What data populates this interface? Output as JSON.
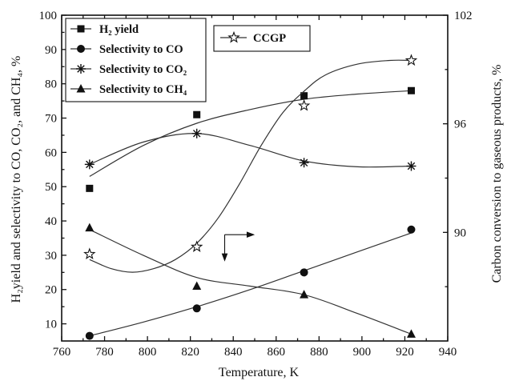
{
  "chart_data": {
    "type": "scatter",
    "xlabel": "Temperature, K",
    "ylabel_left": "H₂yield and selectivity to CO, CO₂, and CH₄, %",
    "ylabel_right": "Carbon conversion to gaseous products, %",
    "xlim": [
      760,
      940
    ],
    "ylim_left": [
      5,
      100
    ],
    "ylim_right": [
      84,
      102
    ],
    "x_ticks": [
      "760",
      "780",
      "800",
      "820",
      "840",
      "860",
      "880",
      "900",
      "920",
      "940"
    ],
    "y_ticks_left": [
      "10",
      "20",
      "30",
      "40",
      "50",
      "60",
      "70",
      "80",
      "90",
      "100"
    ],
    "y_ticks_right": [
      "90",
      "96",
      "102"
    ],
    "legend_left": {
      "position": "top-left",
      "entries": [
        {
          "name": "H₂ yield",
          "series": "h2_yield"
        },
        {
          "name": "Selectivity to CO",
          "series": "sel_co"
        },
        {
          "name": "Selectivity to CO₂",
          "series": "sel_co2"
        },
        {
          "name": "Selectivity to CH₄",
          "series": "sel_ch4"
        }
      ]
    },
    "legend_right": {
      "position": "top-center",
      "entries": [
        {
          "name": "CCGP",
          "series": "ccgp"
        }
      ]
    },
    "series": [
      {
        "id": "h2_yield",
        "marker": "square",
        "axis": "left",
        "x": [
          773,
          823,
          873,
          923
        ],
        "values": [
          49.5,
          71,
          76.5,
          78
        ],
        "curve_x": [
          773,
          798,
          823,
          848,
          873,
          898,
          923
        ],
        "curve_y": [
          53,
          62,
          68.5,
          72.5,
          75.5,
          77,
          78
        ]
      },
      {
        "id": "sel_co",
        "marker": "circle",
        "axis": "left",
        "x": [
          773,
          823,
          873,
          923
        ],
        "values": [
          6.5,
          14.5,
          25,
          37.5
        ],
        "curve_x": [
          773,
          798,
          823,
          848,
          873,
          898,
          923
        ],
        "curve_y": [
          6.5,
          10.5,
          15,
          20,
          25.5,
          31,
          36.5
        ]
      },
      {
        "id": "sel_co2",
        "marker": "asterisk",
        "axis": "left",
        "x": [
          773,
          823,
          873,
          923
        ],
        "values": [
          56.5,
          65.5,
          57,
          56
        ],
        "curve_x": [
          773,
          798,
          823,
          848,
          873,
          898,
          923
        ],
        "curve_y": [
          56.5,
          63,
          65.5,
          62,
          57.5,
          55.8,
          56
        ]
      },
      {
        "id": "sel_ch4",
        "marker": "triangle",
        "axis": "left",
        "x": [
          773,
          823,
          873,
          923
        ],
        "values": [
          38,
          21,
          18.5,
          7
        ],
        "curve_x": [
          773,
          798,
          823,
          848,
          873,
          898,
          923
        ],
        "curve_y": [
          37.5,
          30,
          23.5,
          21,
          18.5,
          13,
          7
        ]
      },
      {
        "id": "ccgp",
        "marker": "star",
        "axis": "right",
        "x": [
          773,
          823,
          873,
          923
        ],
        "values": [
          88.8,
          89.2,
          97.0,
          99.5
        ],
        "curve_x": [
          773,
          783,
          793,
          803,
          813,
          823,
          833,
          843,
          853,
          863,
          873,
          883,
          898,
          913,
          923
        ],
        "curve_y": [
          88.5,
          88.0,
          87.8,
          88.0,
          88.5,
          89.4,
          90.8,
          92.7,
          94.8,
          96.6,
          97.8,
          98.7,
          99.3,
          99.5,
          99.5
        ]
      }
    ],
    "annotations": [
      {
        "type": "axis-arrows",
        "x": 836,
        "y_left": 36
      }
    ],
    "grid": false
  }
}
